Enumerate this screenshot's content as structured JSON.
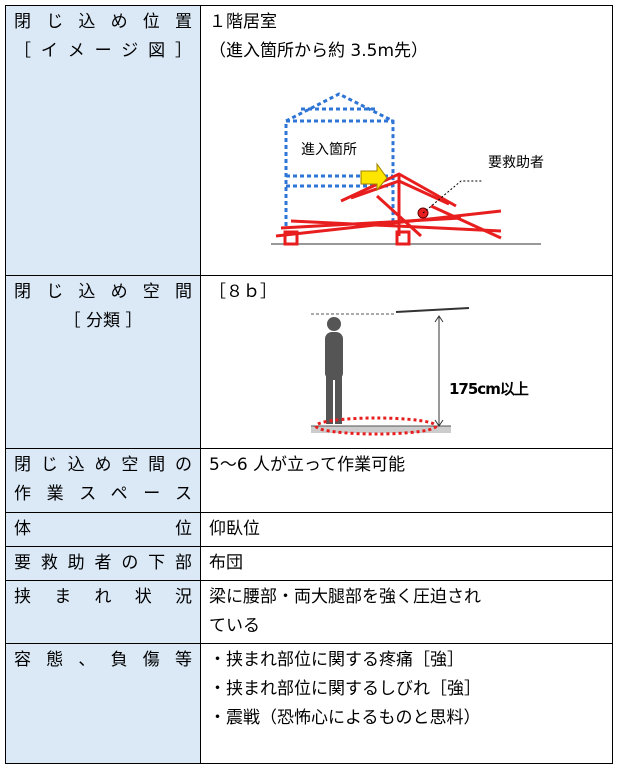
{
  "table": {
    "rows": [
      {
        "label": [
          "閉じ込め位置",
          "［イメージ図］"
        ],
        "content": [
          "１階居室",
          "（進入箇所から約 3.5m先）"
        ],
        "figure": {
          "entry": "進入箇所",
          "victim": "要救助者"
        }
      },
      {
        "label": [
          "閉じ込め空間",
          "［ 分類 ］"
        ],
        "content": [
          "［８ｂ］"
        ],
        "figure": {
          "height": "175cm以上"
        }
      },
      {
        "label": [
          "閉じ込め空間の",
          "作業スペース"
        ],
        "content": [
          "5〜6 人が立って作業可能"
        ]
      },
      {
        "label": [
          "体位"
        ],
        "content": [
          "仰臥位"
        ]
      },
      {
        "label": [
          "要救助者の下部"
        ],
        "content": [
          "布団"
        ]
      },
      {
        "label": [
          "挟まれ状況"
        ],
        "content": [
          "梁に腰部・両大腿部を強く圧迫され",
          "ている"
        ]
      },
      {
        "label": [
          "容態、負傷等"
        ],
        "content": [
          "・挟まれ部位に関する疼痛［強］",
          "・挟まれ部位に関するしびれ［強］",
          "・震戦（恐怖心によるものと思料）"
        ]
      }
    ]
  }
}
